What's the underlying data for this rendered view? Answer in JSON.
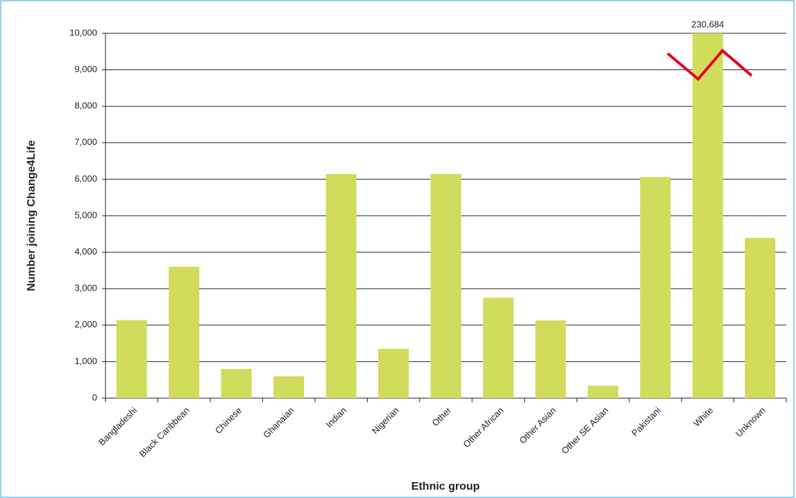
{
  "chart_data": {
    "type": "bar",
    "x_label": "Ethnic group",
    "y_label": "Number joining Change4Life",
    "categories": [
      "Bangladeshi",
      "Black Caribbean",
      "Chinese",
      "Ghanaian",
      "Indian",
      "Nigerian",
      "Other",
      "Other African",
      "Other Asian",
      "Other SE Asian",
      "Pakistani",
      "White",
      "Unknown"
    ],
    "values": [
      2140,
      3600,
      800,
      600,
      6140,
      1350,
      6140,
      2750,
      2130,
      340,
      6060,
      230684,
      4390
    ],
    "value_labels": [
      null,
      null,
      null,
      null,
      null,
      null,
      null,
      null,
      null,
      null,
      null,
      "230,684",
      null
    ],
    "color": "#d0dc5c",
    "ylim": [
      0,
      10000
    ],
    "yticks": [
      0,
      {
        "value": 1000,
        "label": "1,000"
      },
      {
        "value": 2000,
        "label": "2,000"
      },
      {
        "value": 3000,
        "label": "3,000"
      },
      {
        "value": 4000,
        "label": "4,000"
      },
      {
        "value": 5000,
        "label": "5,000"
      },
      {
        "value": 6000,
        "label": "6,000"
      },
      {
        "value": 7000,
        "label": "7,000"
      },
      {
        "value": 8000,
        "label": "8,000"
      },
      {
        "value": 9000,
        "label": "9,000"
      },
      {
        "value": 10000,
        "label": "10,000"
      }
    ],
    "grid": true
  }
}
